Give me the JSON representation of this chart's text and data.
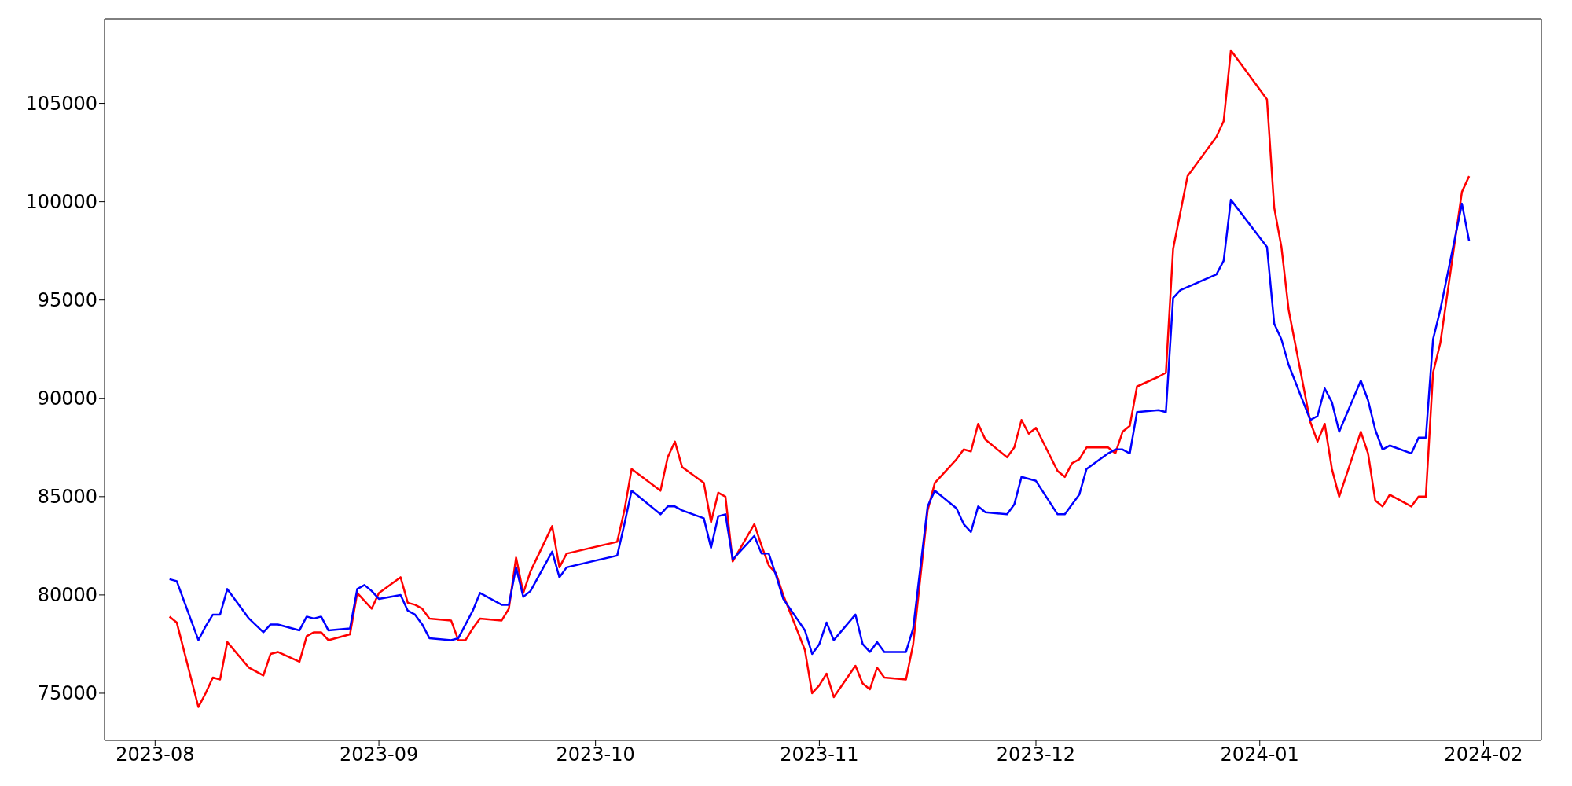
{
  "chart_data": {
    "type": "line",
    "xlim": [
      "2023-07-25",
      "2024-02-09"
    ],
    "xticks": [
      "2023-08",
      "2023-09",
      "2023-10",
      "2023-11",
      "2023-12",
      "2024-01",
      "2024-02"
    ],
    "ylim": [
      72600,
      109300
    ],
    "yticks": [
      75000,
      80000,
      85000,
      90000,
      95000,
      100000,
      105000
    ],
    "series": [
      {
        "color": "#ff0000",
        "x": [
          "2023-08-03",
          "2023-08-04",
          "2023-08-07",
          "2023-08-08",
          "2023-08-09",
          "2023-08-10",
          "2023-08-11",
          "2023-08-14",
          "2023-08-16",
          "2023-08-17",
          "2023-08-18",
          "2023-08-21",
          "2023-08-22",
          "2023-08-23",
          "2023-08-24",
          "2023-08-25",
          "2023-08-28",
          "2023-08-29",
          "2023-08-31",
          "2023-09-01",
          "2023-09-04",
          "2023-09-05",
          "2023-09-06",
          "2023-09-07",
          "2023-09-08",
          "2023-09-11",
          "2023-09-12",
          "2023-09-13",
          "2023-09-14",
          "2023-09-15",
          "2023-09-18",
          "2023-09-19",
          "2023-09-20",
          "2023-09-21",
          "2023-09-22",
          "2023-09-25",
          "2023-09-26",
          "2023-09-27",
          "2023-10-04",
          "2023-10-05",
          "2023-10-06",
          "2023-10-10",
          "2023-10-11",
          "2023-10-12",
          "2023-10-13",
          "2023-10-16",
          "2023-10-17",
          "2023-10-18",
          "2023-10-19",
          "2023-10-20",
          "2023-10-23",
          "2023-10-24",
          "2023-10-25",
          "2023-10-26",
          "2023-10-27",
          "2023-10-30",
          "2023-10-31",
          "2023-11-01",
          "2023-11-02",
          "2023-11-03",
          "2023-11-06",
          "2023-11-07",
          "2023-11-08",
          "2023-11-09",
          "2023-11-10",
          "2023-11-13",
          "2023-11-14",
          "2023-11-16",
          "2023-11-17",
          "2023-11-20",
          "2023-11-21",
          "2023-11-22",
          "2023-11-23",
          "2023-11-24",
          "2023-11-27",
          "2023-11-28",
          "2023-11-29",
          "2023-11-30",
          "2023-12-01",
          "2023-12-04",
          "2023-12-05",
          "2023-12-06",
          "2023-12-07",
          "2023-12-08",
          "2023-12-11",
          "2023-12-12",
          "2023-12-13",
          "2023-12-14",
          "2023-12-15",
          "2023-12-18",
          "2023-12-19",
          "2023-12-20",
          "2023-12-22",
          "2023-12-26",
          "2023-12-27",
          "2023-12-28",
          "2024-01-02",
          "2024-01-03",
          "2024-01-04",
          "2024-01-05",
          "2024-01-08",
          "2024-01-09",
          "2024-01-10",
          "2024-01-11",
          "2024-01-12",
          "2024-01-15",
          "2024-01-16",
          "2024-01-17",
          "2024-01-18",
          "2024-01-19",
          "2024-01-22",
          "2024-01-23",
          "2024-01-24",
          "2024-01-25",
          "2024-01-26",
          "2024-01-29",
          "2024-01-30"
        ],
        "values": [
          78900,
          78600,
          74300,
          75000,
          75800,
          75700,
          77600,
          76300,
          75900,
          77000,
          77100,
          76600,
          77900,
          78100,
          78100,
          77700,
          78000,
          80100,
          79300,
          80100,
          80900,
          79600,
          79500,
          79300,
          78800,
          78700,
          77700,
          77700,
          78300,
          78800,
          78700,
          79300,
          81900,
          80100,
          81200,
          83500,
          81400,
          82100,
          82700,
          84300,
          86400,
          85300,
          87000,
          87800,
          86500,
          85700,
          83700,
          85200,
          85000,
          81700,
          83600,
          82500,
          81500,
          81100,
          80000,
          77200,
          75000,
          75400,
          76000,
          74800,
          76400,
          75500,
          75200,
          76300,
          75800,
          75700,
          77500,
          84300,
          85700,
          86900,
          87400,
          87300,
          88700,
          87900,
          87000,
          87500,
          88900,
          88200,
          88500,
          86300,
          86000,
          86700,
          86900,
          87500,
          87500,
          87200,
          88300,
          88600,
          90600,
          91100,
          91300,
          97600,
          101300,
          103300,
          104100,
          107700,
          105200,
          99700,
          97700,
          94500,
          88800,
          87800,
          88700,
          86400,
          85000,
          88300,
          87200,
          84800,
          84500,
          85100,
          84500,
          85000,
          85000,
          91300,
          92800,
          100500,
          101300
        ]
      },
      {
        "color": "#0000ff",
        "x": [
          "2023-08-03",
          "2023-08-04",
          "2023-08-07",
          "2023-08-08",
          "2023-08-09",
          "2023-08-10",
          "2023-08-11",
          "2023-08-14",
          "2023-08-16",
          "2023-08-17",
          "2023-08-18",
          "2023-08-21",
          "2023-08-22",
          "2023-08-23",
          "2023-08-24",
          "2023-08-25",
          "2023-08-28",
          "2023-08-29",
          "2023-08-30",
          "2023-08-31",
          "2023-09-01",
          "2023-09-04",
          "2023-09-05",
          "2023-09-06",
          "2023-09-07",
          "2023-09-08",
          "2023-09-11",
          "2023-09-12",
          "2023-09-13",
          "2023-09-14",
          "2023-09-15",
          "2023-09-18",
          "2023-09-19",
          "2023-09-20",
          "2023-09-21",
          "2023-09-22",
          "2023-09-25",
          "2023-09-26",
          "2023-09-27",
          "2023-10-04",
          "2023-10-05",
          "2023-10-06",
          "2023-10-10",
          "2023-10-11",
          "2023-10-12",
          "2023-10-13",
          "2023-10-16",
          "2023-10-17",
          "2023-10-18",
          "2023-10-19",
          "2023-10-20",
          "2023-10-23",
          "2023-10-24",
          "2023-10-25",
          "2023-10-26",
          "2023-10-27",
          "2023-10-30",
          "2023-10-31",
          "2023-11-01",
          "2023-11-02",
          "2023-11-03",
          "2023-11-06",
          "2023-11-07",
          "2023-11-08",
          "2023-11-09",
          "2023-11-10",
          "2023-11-13",
          "2023-11-14",
          "2023-11-16",
          "2023-11-17",
          "2023-11-20",
          "2023-11-21",
          "2023-11-22",
          "2023-11-23",
          "2023-11-24",
          "2023-11-27",
          "2023-11-28",
          "2023-11-29",
          "2023-11-30",
          "2023-12-01",
          "2023-12-04",
          "2023-12-05",
          "2023-12-06",
          "2023-12-07",
          "2023-12-08",
          "2023-12-11",
          "2023-12-12",
          "2023-12-13",
          "2023-12-14",
          "2023-12-15",
          "2023-12-18",
          "2023-12-19",
          "2023-12-20",
          "2023-12-21",
          "2023-12-26",
          "2023-12-27",
          "2023-12-28",
          "2024-01-02",
          "2024-01-03",
          "2024-01-04",
          "2024-01-05",
          "2024-01-08",
          "2024-01-09",
          "2024-01-10",
          "2024-01-11",
          "2024-01-12",
          "2024-01-15",
          "2024-01-16",
          "2024-01-17",
          "2024-01-18",
          "2024-01-19",
          "2024-01-22",
          "2024-01-23",
          "2024-01-24",
          "2024-01-25",
          "2024-01-26",
          "2024-01-29",
          "2024-01-30"
        ],
        "values": [
          80800,
          80700,
          77700,
          78400,
          79000,
          79000,
          80300,
          78800,
          78100,
          78500,
          78500,
          78200,
          78900,
          78800,
          78900,
          78200,
          78300,
          80300,
          80500,
          80200,
          79800,
          80000,
          79200,
          79000,
          78500,
          77800,
          77700,
          77800,
          78500,
          79200,
          80100,
          79500,
          79500,
          81400,
          79900,
          80200,
          82200,
          80900,
          81400,
          82000,
          83600,
          85300,
          84100,
          84500,
          84500,
          84300,
          83900,
          82400,
          84000,
          84100,
          81800,
          83000,
          82100,
          82100,
          81000,
          79800,
          78200,
          77000,
          77500,
          78600,
          77700,
          79000,
          77500,
          77100,
          77600,
          77100,
          77100,
          78300,
          84500,
          85300,
          84400,
          83600,
          83200,
          84500,
          84200,
          84100,
          84600,
          86000,
          85900,
          85800,
          84100,
          84100,
          84600,
          85100,
          86400,
          87200,
          87400,
          87400,
          87200,
          89300,
          89400,
          89300,
          95100,
          95500,
          96300,
          97000,
          100100,
          97700,
          93800,
          93000,
          91700,
          88900,
          89100,
          90500,
          89800,
          88300,
          90900,
          89900,
          88400,
          87400,
          87600,
          87200,
          88000,
          88000,
          93000,
          94500,
          99900,
          98000
        ]
      }
    ]
  }
}
